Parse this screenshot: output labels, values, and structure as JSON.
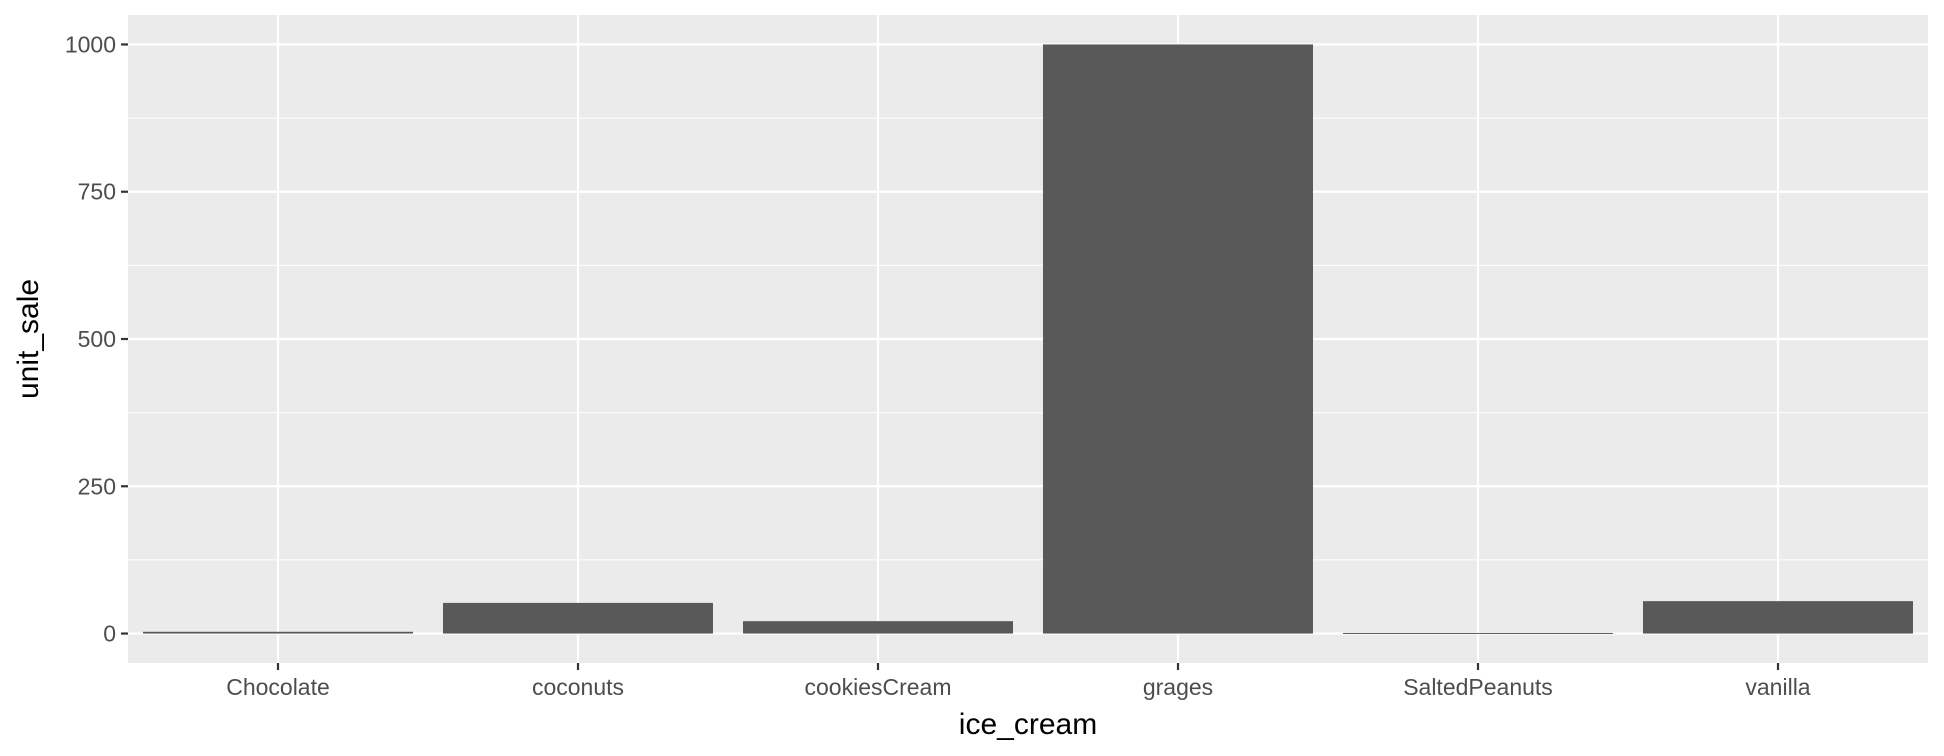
{
  "chart_data": {
    "type": "bar",
    "categories": [
      "Chocolate",
      "coconuts",
      "cookiesCream",
      "grages",
      "SaltedPeanuts",
      "vanilla"
    ],
    "values": [
      3,
      52,
      21,
      1000,
      1,
      55
    ],
    "title": "",
    "xlabel": "ice_cream",
    "ylabel": "unit_sale",
    "ylim": [
      -50,
      1050
    ],
    "yticks": [
      0,
      250,
      500,
      750,
      1000
    ],
    "ytick_labels": [
      "0",
      "250",
      "500",
      "750",
      "1000"
    ],
    "grid": true,
    "legend": "none",
    "colors": {
      "panel": "#ebebeb",
      "grid_major": "#ffffff",
      "bar": "#595959",
      "tick": "#333333",
      "tick_text": "#4d4d4d",
      "title_text": "#000000"
    }
  }
}
